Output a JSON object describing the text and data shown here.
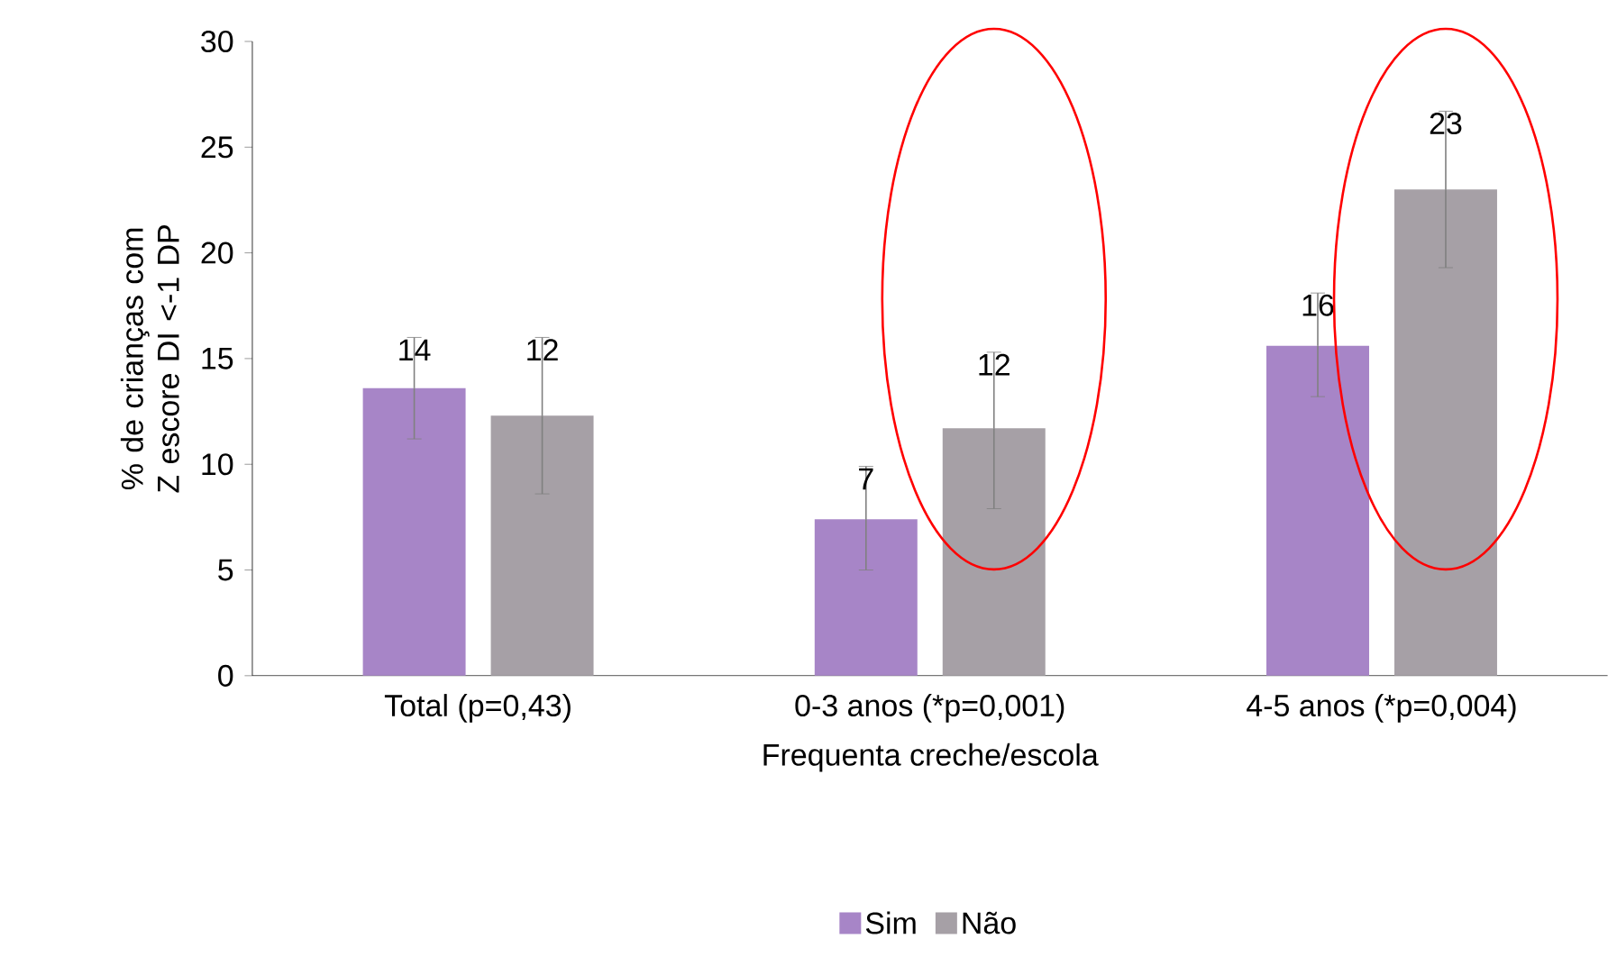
{
  "chart_data": {
    "type": "bar",
    "xlabel": "Frequenta creche/escola",
    "ylabel": "% de crianças com Z escore DI <-1 DP",
    "categories": [
      "Total (p=0,43)",
      "0-3 anos (*p=0,001)",
      "4-5 anos (*p=0,004)"
    ],
    "series": [
      {
        "name": "Sim",
        "color": "#a785c7",
        "values": [
          13.6,
          7.4,
          15.6
        ],
        "errors": [
          [
            11.2,
            16.0
          ],
          [
            5.0,
            9.9
          ],
          [
            13.2,
            18.1
          ]
        ],
        "value_labels": [
          "14",
          "7",
          "16"
        ]
      },
      {
        "name": "Não",
        "color": "#a6a0a6",
        "values": [
          12.3,
          11.7,
          23.0
        ],
        "errors": [
          [
            8.6,
            16.0
          ],
          [
            7.9,
            15.3
          ],
          [
            19.3,
            26.7
          ]
        ],
        "value_labels": [
          "12",
          "12",
          "23"
        ]
      }
    ],
    "ylim": [
      0,
      30
    ],
    "yticks": [
      0,
      5,
      10,
      15,
      20,
      25,
      30
    ],
    "legend": "bottom"
  }
}
